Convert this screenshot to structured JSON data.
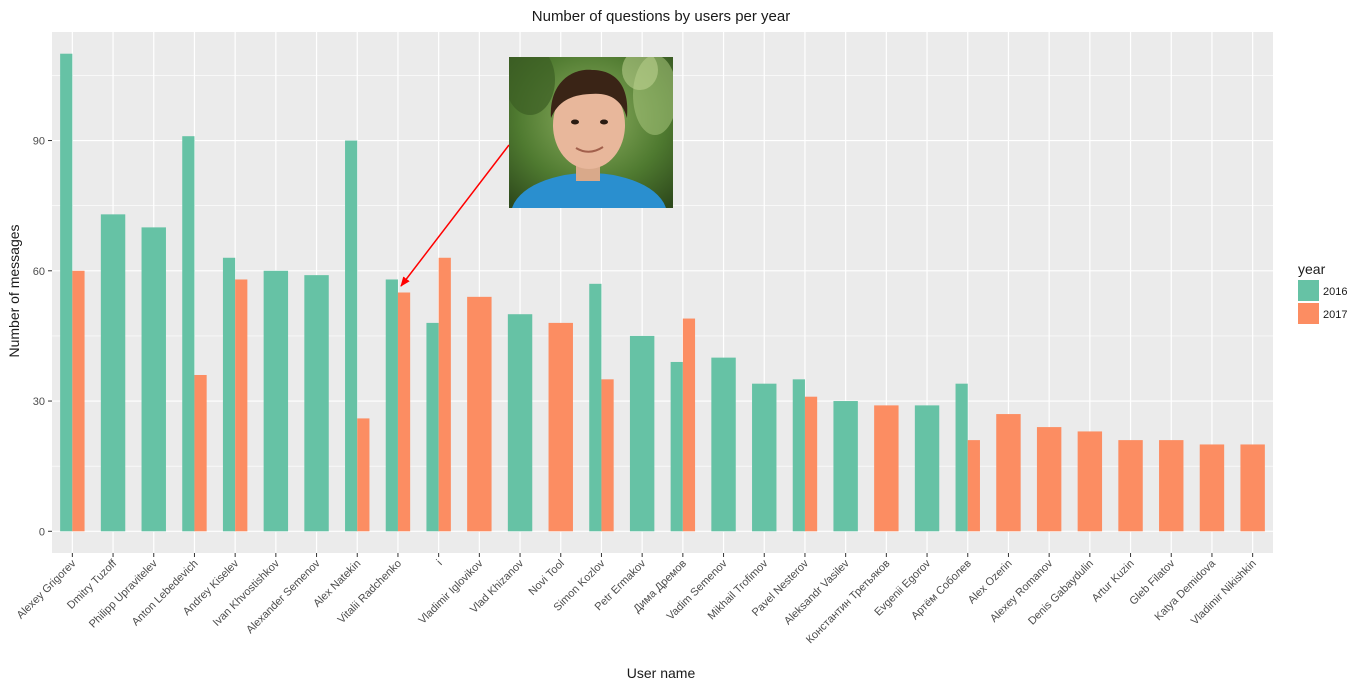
{
  "chart_data": {
    "type": "bar",
    "title": "Number of questions by users per year",
    "xlabel": "User name",
    "ylabel": "Number of messages",
    "ylim": [
      -5,
      115
    ],
    "yticks": [
      0,
      30,
      60,
      90
    ],
    "grid": true,
    "legend": {
      "title": "year",
      "placement": "right"
    },
    "series": [
      {
        "name": "2016",
        "color": "#66C2A5",
        "values": [
          110,
          73,
          70,
          91,
          63,
          60,
          59,
          90,
          58,
          48,
          null,
          50,
          null,
          57,
          45,
          39,
          40,
          34,
          35,
          30,
          null,
          29,
          34,
          null,
          null,
          null,
          null,
          null,
          null,
          null
        ]
      },
      {
        "name": "2017",
        "color": "#FC8D62",
        "values": [
          60,
          null,
          null,
          36,
          58,
          null,
          null,
          26,
          55,
          63,
          54,
          null,
          48,
          35,
          null,
          49,
          null,
          null,
          31,
          null,
          29,
          null,
          21,
          27,
          24,
          23,
          21,
          21,
          20,
          20
        ]
      }
    ],
    "categories": [
      "Alexey Grigorev",
      "Dmitry Tuzoff",
      "Philipp Upravitelev",
      "Anton Lebedevich",
      "Andrey Kiselev",
      "Ivan Khvostishkov",
      "Alexander Semenov",
      "Alex Natekin",
      "Vitalii Radchenko",
      "i",
      "Vladimir Iglovikov",
      "Vlad Khizanov",
      "Novi Tool",
      "Simon Kozlov",
      "Petr Ermakov",
      "Дима Дремов",
      "Vadim Semenov",
      "Mikhail Trofimov",
      "Pavel Nesterov",
      "Aleksandr Vasilev",
      "Константин Третьяков",
      "Evgenii Egorov",
      "Артём Соболев",
      "Alex Ozerin",
      "Alexey Romanov",
      "Denis Gabaydulin",
      "Artur Kuzin",
      "Gleb Filatov",
      "Katya Demidova",
      "Vladimir Nikishkin"
    ],
    "annotation": {
      "type": "photo-callout",
      "points_to": "Vitalii Radchenko",
      "arrow_color": "#FF0000"
    }
  }
}
